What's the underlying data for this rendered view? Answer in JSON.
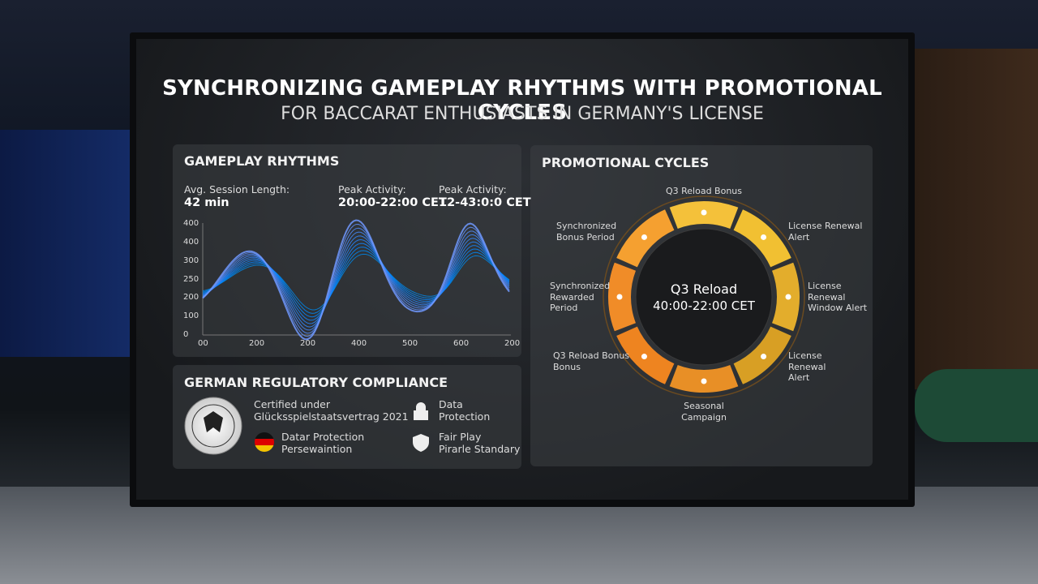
{
  "header": {
    "title": "SYNCHRONIZING GAMEPLAY RHYTHMS WITH PROMOTIONAL CYCLES",
    "subtitle": "FOR BACCARAT ENTHUSIASTS IN GERMANY'S LICENSE"
  },
  "gameplay": {
    "title": "GAMEPLAY RHYTHMS",
    "stats": [
      {
        "label": "Avg. Session Length:",
        "value": "42 min"
      },
      {
        "label": "Peak Activity:",
        "value": "20:00-22:00 CET"
      },
      {
        "label": "Peak Activity:",
        "value": "12-43:0:0 CET"
      }
    ],
    "y_axis_labels": [
      "400",
      "400",
      "300",
      "250",
      "200",
      "100",
      "0"
    ],
    "x_axis_labels": [
      "00",
      "200",
      "200",
      "400",
      "500",
      "600",
      "200"
    ]
  },
  "promo": {
    "title": "PROMOTIONAL CYCLES",
    "center_title": "Q3 Reload",
    "center_subtitle": "40:00-22:00 CET",
    "labels": [
      [
        "Q3 Reload Bonus"
      ],
      [
        "License Renewal",
        "Alert"
      ],
      [
        "License",
        "Renewal",
        "Window Alert"
      ],
      [
        "License",
        "Renewal",
        "Alert"
      ],
      [
        "Seasonal",
        "Campaign"
      ],
      [
        "Q3 Reload Bonus",
        "Bonus"
      ],
      [
        "Synchronized",
        "Rewarded",
        "Period"
      ],
      [
        "Synchronized",
        "Bonus Period"
      ]
    ]
  },
  "compliance": {
    "title": "GERMAN REGULATORY COMPLIANCE",
    "items": [
      [
        "Certified under",
        "Glücksspielstaatsvertrag 2021"
      ],
      [
        "Datar Protection",
        "Persewaintion"
      ],
      [
        "Data",
        "Protection"
      ],
      [
        "Fair Play",
        "Pirarle Standary"
      ]
    ]
  }
}
